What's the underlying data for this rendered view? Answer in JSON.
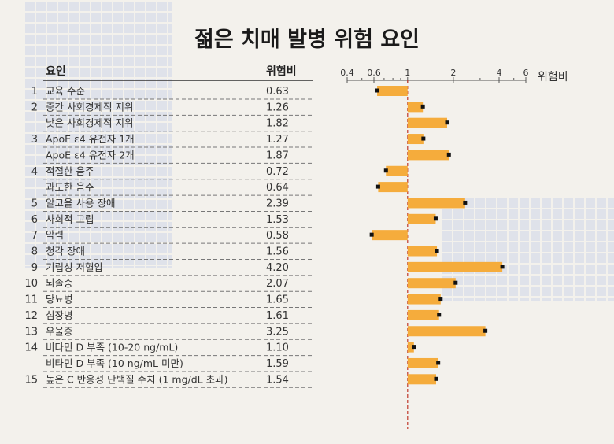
{
  "title": "젊은 치매 발병 위험 요인",
  "chart_data": {
    "type": "bar",
    "title": "젊은 치매 발병 위험 요인",
    "col_factor": "요인",
    "col_value": "위험비",
    "xlabel": "위험비",
    "xscale": "log",
    "xlim": [
      0.4,
      6
    ],
    "xticks": [
      "0.4",
      "0.6",
      "1",
      "2",
      "4",
      "6"
    ],
    "minor_ticks": [
      0.5,
      0.7,
      0.8,
      0.9,
      3,
      5
    ],
    "reference": 1,
    "bar_color": "#f5ac3c",
    "ref_color": "#c0392b",
    "rows": [
      {
        "num": "1",
        "label": "교육 수준",
        "value": "0.63"
      },
      {
        "num": "2",
        "label": "중간 사회경제적 지위",
        "value": "1.26"
      },
      {
        "num": "",
        "label": "낮은 사회경제적 지위",
        "value": "1.82"
      },
      {
        "num": "3",
        "label": "ApoE ε4 유전자 1개",
        "value": "1.27"
      },
      {
        "num": "",
        "label": "ApoE ε4 유전자 2개",
        "value": "1.87"
      },
      {
        "num": "4",
        "label": "적절한 음주",
        "value": "0.72"
      },
      {
        "num": "",
        "label": "과도한 음주",
        "value": "0.64"
      },
      {
        "num": "5",
        "label": "알코올 사용 장애",
        "value": "2.39"
      },
      {
        "num": "6",
        "label": "사회적 고립",
        "value": "1.53"
      },
      {
        "num": "7",
        "label": "악력",
        "value": "0.58"
      },
      {
        "num": "8",
        "label": "청각 장애",
        "value": "1.56"
      },
      {
        "num": "9",
        "label": "기립성 저혈압",
        "value": "4.20"
      },
      {
        "num": "10",
        "label": "뇌졸중",
        "value": "2.07"
      },
      {
        "num": "11",
        "label": "당뇨병",
        "value": "1.65"
      },
      {
        "num": "12",
        "label": "심장병",
        "value": "1.61"
      },
      {
        "num": "13",
        "label": "우울증",
        "value": "3.25"
      },
      {
        "num": "14",
        "label": "비타민 D 부족 (10-20 ng/mL)",
        "value": "1.10"
      },
      {
        "num": "",
        "label": "비타민 D 부족 (10 ng/mL 미만)",
        "value": "1.59"
      },
      {
        "num": "15",
        "label": "높은 C 반응성 단백질 수치 (1 mg/dL 초과)",
        "value": "1.54"
      }
    ]
  }
}
